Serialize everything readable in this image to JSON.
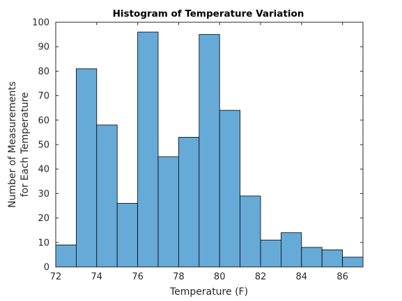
{
  "chart_data": {
    "type": "bar",
    "title": "Histogram of Temperature Variation",
    "xlabel": "Temperature (F)",
    "ylabel_lines": [
      "Number of Measurements",
      "for Each Temperature"
    ],
    "xlim": [
      72,
      87
    ],
    "ylim": [
      0,
      100
    ],
    "xticks": [
      72,
      74,
      76,
      78,
      80,
      82,
      84,
      86
    ],
    "yticks": [
      0,
      10,
      20,
      30,
      40,
      50,
      60,
      70,
      80,
      90,
      100
    ],
    "bin_edges": [
      72,
      73,
      74,
      75,
      76,
      77,
      78,
      79,
      80,
      81,
      82,
      83,
      84,
      85,
      86,
      87
    ],
    "values": [
      9,
      81,
      58,
      26,
      96,
      45,
      53,
      95,
      64,
      29,
      11,
      14,
      8,
      7,
      4
    ],
    "bar_color": "#66aad8",
    "edge_color": "#000000",
    "grid": false
  }
}
